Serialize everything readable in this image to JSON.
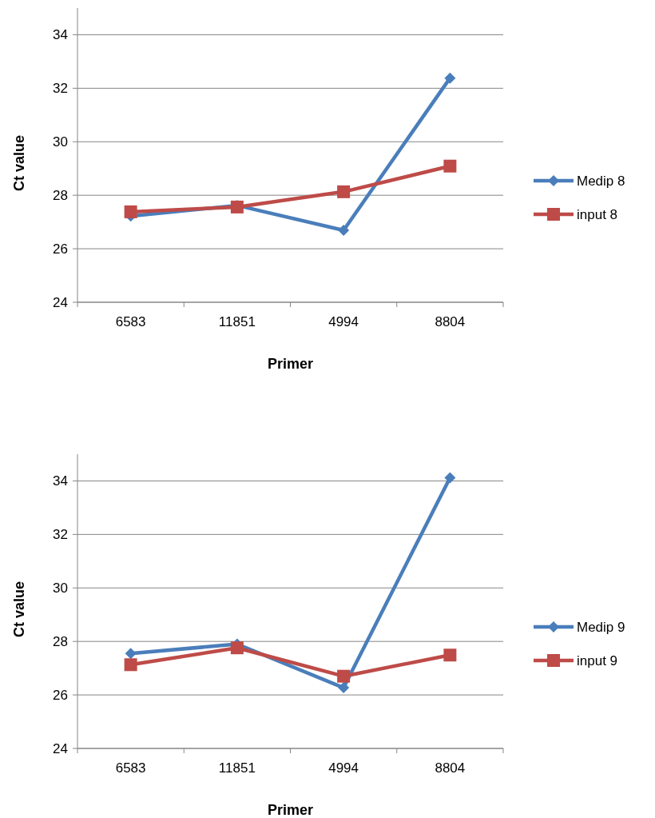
{
  "chart_data": [
    {
      "type": "line",
      "xlabel": "Primer",
      "ylabel": "Ct value",
      "categories": [
        "6583",
        "11851",
        "4994",
        "8804"
      ],
      "ylim": [
        24,
        35
      ],
      "yticks": [
        24,
        26,
        28,
        30,
        32,
        34
      ],
      "grid": "y",
      "legend": "right",
      "series": [
        {
          "name": "Medip 8",
          "color": "#4a7ebb",
          "marker": "diamond",
          "values": [
            27.22,
            27.62,
            26.69,
            32.38
          ]
        },
        {
          "name": "input 8",
          "color": "#be4b48",
          "marker": "square",
          "values": [
            27.38,
            27.56,
            28.13,
            29.09
          ]
        }
      ]
    },
    {
      "type": "line",
      "xlabel": "Primer",
      "ylabel": "Ct value",
      "categories": [
        "6583",
        "11851",
        "4994",
        "8804"
      ],
      "ylim": [
        24,
        35
      ],
      "yticks": [
        24,
        26,
        28,
        30,
        32,
        34
      ],
      "grid": "y",
      "legend": "right",
      "series": [
        {
          "name": "Medip 9",
          "color": "#4a7ebb",
          "marker": "diamond",
          "values": [
            27.55,
            27.9,
            26.27,
            34.12
          ]
        },
        {
          "name": "input 9",
          "color": "#be4b48",
          "marker": "square",
          "values": [
            27.13,
            27.76,
            26.7,
            27.49
          ]
        }
      ]
    }
  ]
}
